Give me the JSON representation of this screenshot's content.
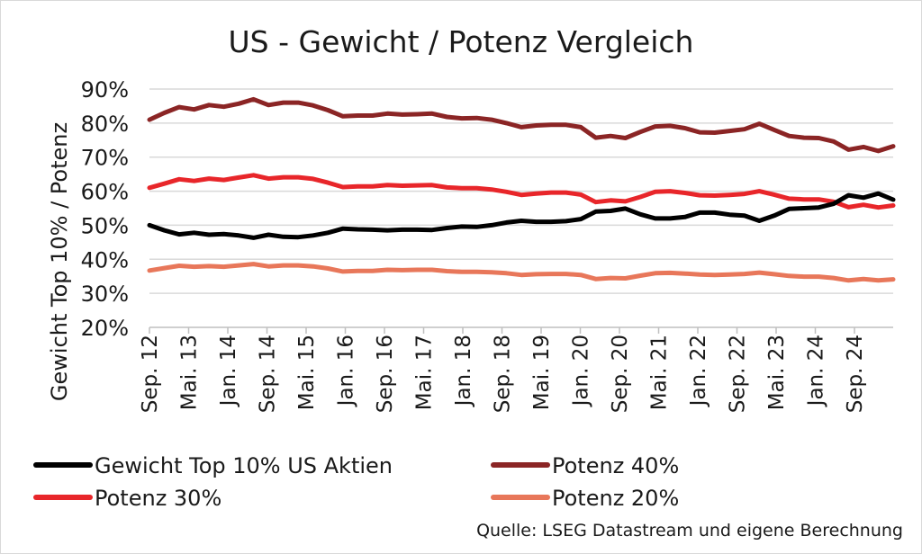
{
  "chart_data": {
    "type": "line",
    "title": "US - Gewicht / Potenz Vergleich",
    "ylabel": "Gewicht Top 10% / Potenz",
    "xlabel": "",
    "ylim": [
      0.2,
      0.9
    ],
    "yticks": [
      0.2,
      0.3,
      0.4,
      0.5,
      0.6,
      0.7,
      0.8,
      0.9
    ],
    "ytick_labels": [
      "20%",
      "30%",
      "40%",
      "50%",
      "60%",
      "70%",
      "80%",
      "90%"
    ],
    "xtick_labels": [
      "Sep. 12",
      "Mai. 13",
      "Jan. 14",
      "Sep. 14",
      "Mai. 15",
      "Jan. 16",
      "Sep. 16",
      "Mai. 17",
      "Jan. 18",
      "Sep. 18",
      "Mai. 19",
      "Jan. 20",
      "Sep. 20",
      "Mai. 21",
      "Jan. 22",
      "Sep. 22",
      "Mai. 23",
      "Jan. 24",
      "Sep. 24"
    ],
    "grid": true,
    "legend_position": "bottom",
    "source": "Quelle: LSEG Datastream und eigene Berechnung",
    "series": [
      {
        "name": "Gewicht Top 10% US Aktien",
        "color": "#000000",
        "values": [
          0.5,
          0.485,
          0.473,
          0.478,
          0.472,
          0.474,
          0.47,
          0.463,
          0.472,
          0.466,
          0.465,
          0.47,
          0.478,
          0.49,
          0.488,
          0.487,
          0.485,
          0.487,
          0.487,
          0.486,
          0.492,
          0.496,
          0.495,
          0.5,
          0.508,
          0.513,
          0.51,
          0.51,
          0.512,
          0.518,
          0.54,
          0.542,
          0.549,
          0.532,
          0.52,
          0.52,
          0.524,
          0.537,
          0.537,
          0.531,
          0.528,
          0.513,
          0.528,
          0.548,
          0.55,
          0.552,
          0.563,
          0.588,
          0.581,
          0.593,
          0.575
        ]
      },
      {
        "name": "Potenz 40%",
        "color": "#8b2525",
        "values": [
          0.81,
          0.83,
          0.847,
          0.84,
          0.853,
          0.848,
          0.857,
          0.87,
          0.853,
          0.86,
          0.86,
          0.852,
          0.838,
          0.82,
          0.822,
          0.822,
          0.828,
          0.825,
          0.826,
          0.828,
          0.818,
          0.814,
          0.815,
          0.81,
          0.8,
          0.788,
          0.793,
          0.795,
          0.795,
          0.788,
          0.757,
          0.762,
          0.756,
          0.774,
          0.79,
          0.792,
          0.785,
          0.773,
          0.772,
          0.777,
          0.782,
          0.798,
          0.78,
          0.762,
          0.757,
          0.756,
          0.746,
          0.722,
          0.73,
          0.718,
          0.732
        ]
      },
      {
        "name": "Potenz 30%",
        "color": "#e8262a",
        "values": [
          0.61,
          0.622,
          0.635,
          0.63,
          0.637,
          0.633,
          0.64,
          0.647,
          0.637,
          0.641,
          0.641,
          0.636,
          0.625,
          0.612,
          0.614,
          0.614,
          0.618,
          0.616,
          0.617,
          0.618,
          0.611,
          0.609,
          0.609,
          0.605,
          0.598,
          0.589,
          0.593,
          0.596,
          0.596,
          0.59,
          0.568,
          0.573,
          0.57,
          0.583,
          0.598,
          0.6,
          0.595,
          0.588,
          0.587,
          0.589,
          0.592,
          0.6,
          0.59,
          0.578,
          0.576,
          0.576,
          0.569,
          0.553,
          0.56,
          0.552,
          0.558
        ]
      },
      {
        "name": "Potenz 20%",
        "color": "#e8775a",
        "values": [
          0.367,
          0.374,
          0.381,
          0.378,
          0.38,
          0.378,
          0.382,
          0.386,
          0.379,
          0.382,
          0.382,
          0.379,
          0.373,
          0.364,
          0.366,
          0.366,
          0.369,
          0.368,
          0.369,
          0.369,
          0.365,
          0.363,
          0.363,
          0.362,
          0.359,
          0.354,
          0.356,
          0.357,
          0.357,
          0.354,
          0.342,
          0.345,
          0.344,
          0.352,
          0.359,
          0.36,
          0.358,
          0.355,
          0.354,
          0.355,
          0.357,
          0.361,
          0.356,
          0.351,
          0.349,
          0.349,
          0.345,
          0.338,
          0.342,
          0.338,
          0.341
        ]
      }
    ]
  }
}
